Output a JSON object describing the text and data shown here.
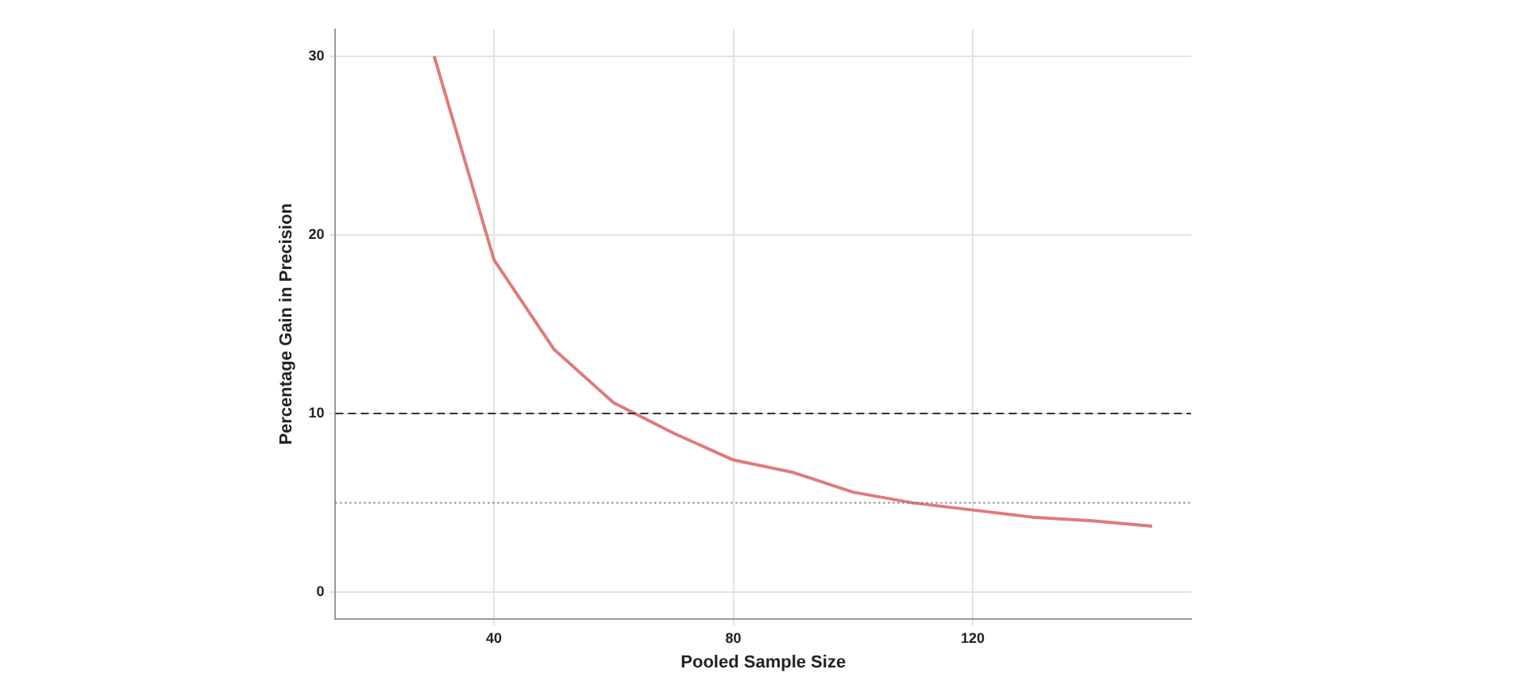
{
  "chart_data": {
    "type": "line",
    "xlabel": "Pooled Sample Size",
    "ylabel": "Percentage Gain in Precision",
    "x": [
      30,
      40,
      50,
      60,
      70,
      80,
      90,
      100,
      110,
      120,
      130,
      140,
      150
    ],
    "series": [
      {
        "color": "#e07b7b",
        "values": [
          30,
          18.6,
          13.6,
          10.6,
          8.9,
          7.4,
          6.7,
          5.6,
          5.0,
          4.6,
          4.2,
          4.0,
          3.7
        ]
      }
    ],
    "xlim": [
      13.5,
      156.5
    ],
    "xticks": [
      40,
      80,
      120
    ],
    "ylim": [
      -1.5,
      31.5
    ],
    "yticks": [
      0,
      10,
      20,
      30
    ],
    "grid": true,
    "legend": false,
    "marker": "none",
    "line_style": "solid",
    "ref_lines": [
      {
        "axis": "y",
        "value": 10,
        "line_style": "dashed",
        "color": "#333333"
      },
      {
        "axis": "y",
        "value": 5,
        "line_style": "dotted",
        "color": "#777777"
      }
    ]
  }
}
